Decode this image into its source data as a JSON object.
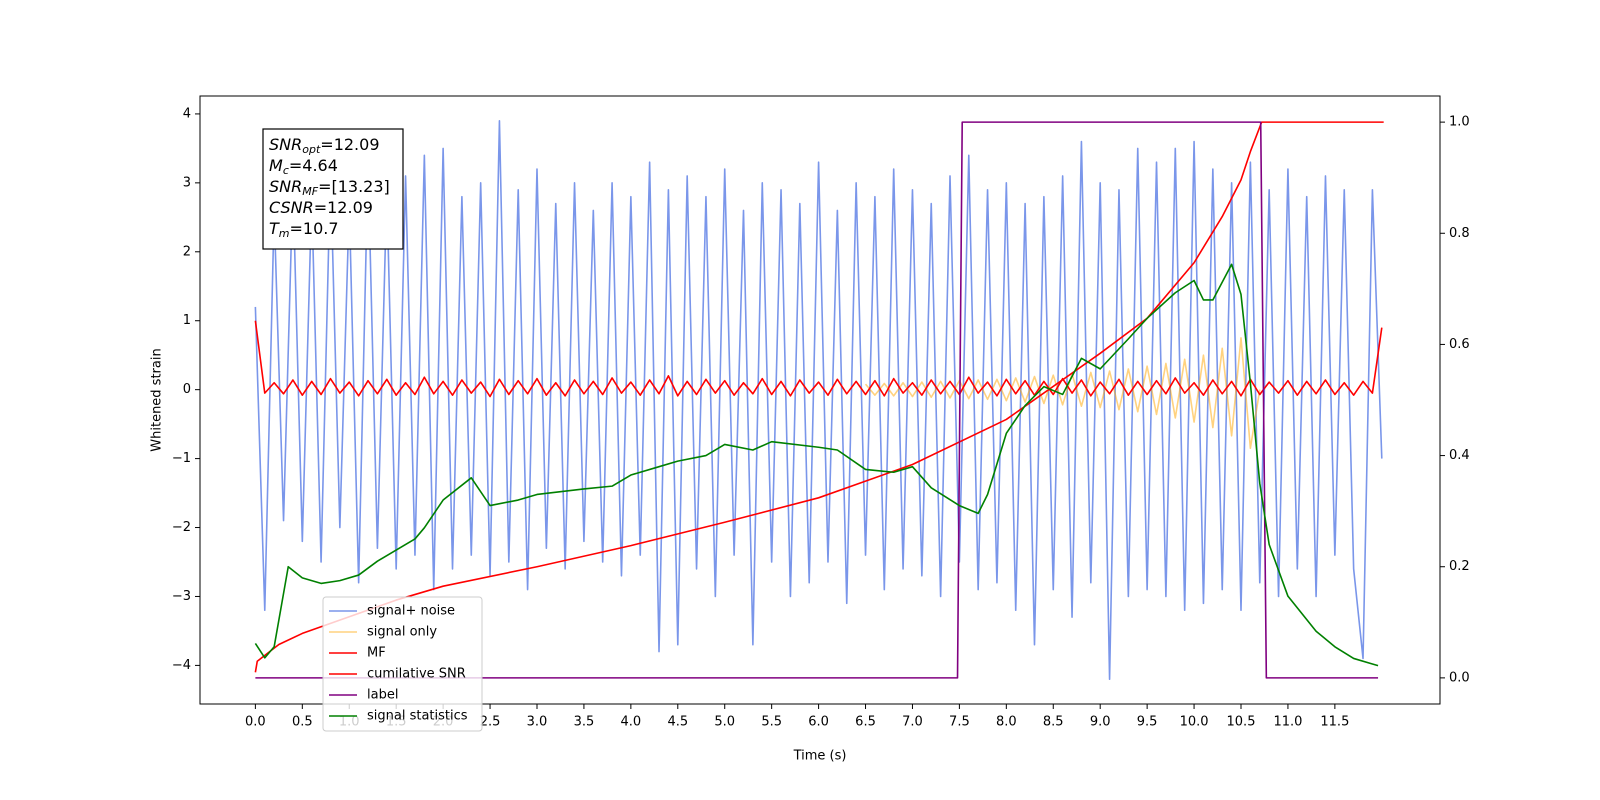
{
  "chart_data": {
    "type": "line",
    "xlabel": "Time (s)",
    "ylabel": "Whitened strain",
    "xlim": [
      -0.59,
      12.62
    ],
    "ylim": [
      -4.56,
      4.26
    ],
    "y2lim": [
      -0.047,
      1.047
    ],
    "xticks": [
      {
        "value": 0,
        "label": "0.0"
      },
      0.5,
      {
        "value": 1,
        "label": "1.0"
      },
      1.5,
      {
        "value": 2,
        "label": "2.0"
      },
      2.5,
      {
        "value": 3,
        "label": "3.0"
      },
      3.5,
      {
        "value": 4,
        "label": "4.0"
      },
      4.5,
      {
        "value": 5,
        "label": "5.0"
      },
      5.5,
      {
        "value": 6,
        "label": "6.0"
      },
      6.5,
      {
        "value": 7,
        "label": "7.0"
      },
      7.5,
      {
        "value": 8,
        "label": "8.0"
      },
      8.5,
      {
        "value": 9,
        "label": "9.0"
      },
      9.5,
      {
        "value": 10,
        "label": "10.0"
      },
      10.5,
      {
        "value": 11,
        "label": "11.0"
      },
      11.5
    ],
    "yticks": [
      {
        "value": -4,
        "label": "−4"
      },
      {
        "value": -3,
        "label": "−3"
      },
      {
        "value": -2,
        "label": "−2"
      },
      {
        "value": -1,
        "label": "−1"
      },
      0,
      1,
      2,
      3,
      4
    ],
    "y2ticks": [
      {
        "value": 0,
        "label": "0.0"
      },
      0.2,
      0.4,
      0.6,
      0.8,
      {
        "value": 1,
        "label": "1.0"
      }
    ],
    "legend": "lower left",
    "annotations": [
      {
        "text": "SNR",
        "sub": "opt",
        "rest": "=12.09"
      },
      {
        "text": "M",
        "sub": "c",
        "rest": "=4.64"
      },
      {
        "text": "SNR",
        "sub": "MF",
        "rest": "=[13.23]"
      },
      {
        "text": "CSNR",
        "rest": "=12.09"
      },
      {
        "text": "T",
        "sub": "m",
        "rest": "=10.7"
      }
    ],
    "x": [
      0,
      0.1,
      0.2,
      0.3,
      0.4,
      0.5,
      0.6,
      0.7,
      0.8,
      0.9,
      1,
      1.1,
      1.2,
      1.3,
      1.4,
      1.5,
      1.6,
      1.7,
      1.8,
      1.9,
      2,
      2.1,
      2.2,
      2.3,
      2.4,
      2.5,
      2.6,
      2.7,
      2.8,
      2.9,
      3,
      3.1,
      3.2,
      3.3,
      3.4,
      3.5,
      3.6,
      3.7,
      3.8,
      3.9,
      4,
      4.1,
      4.2,
      4.3,
      4.4,
      4.5,
      4.6,
      4.7,
      4.8,
      4.9,
      5,
      5.1,
      5.2,
      5.3,
      5.4,
      5.5,
      5.6,
      5.7,
      5.8,
      5.9,
      6,
      6.1,
      6.2,
      6.3,
      6.4,
      6.5,
      6.6,
      6.7,
      6.8,
      6.9,
      7,
      7.1,
      7.2,
      7.3,
      7.4,
      7.5,
      7.6,
      7.7,
      7.8,
      7.9,
      8,
      8.1,
      8.2,
      8.3,
      8.4,
      8.5,
      8.6,
      8.7,
      8.8,
      8.9,
      9,
      9.1,
      9.2,
      9.3,
      9.4,
      9.5,
      9.6,
      9.7,
      9.8,
      9.9,
      10,
      10.1,
      10.2,
      10.3,
      10.4,
      10.5,
      10.6,
      10.7,
      10.8,
      10.9,
      11,
      11.1,
      11.2,
      11.3,
      11.4,
      11.5,
      11.6,
      11.7,
      11.8,
      11.9,
      12
    ],
    "series": [
      {
        "name": "signal+ noise",
        "color": "#4169e1",
        "opacity": 0.7,
        "values": [
          1.2,
          -3.2,
          2.6,
          -1.9,
          3.0,
          -2.2,
          2.8,
          -2.5,
          3.2,
          -2.0,
          2.7,
          -2.8,
          3.3,
          -2.3,
          2.9,
          -2.6,
          3.1,
          -2.4,
          3.4,
          -2.9,
          3.5,
          -2.6,
          2.8,
          -2.4,
          3.0,
          -2.7,
          3.9,
          -2.5,
          2.9,
          -2.9,
          3.2,
          -2.3,
          2.7,
          -2.6,
          3.0,
          -2.2,
          2.6,
          -2.5,
          3.0,
          -2.7,
          2.8,
          -2.4,
          3.3,
          -3.8,
          2.9,
          -3.7,
          3.1,
          -2.6,
          2.8,
          -3.0,
          3.2,
          -2.4,
          2.6,
          -3.7,
          3.0,
          -2.5,
          2.9,
          -3.0,
          2.7,
          -2.8,
          3.3,
          -2.5,
          2.6,
          -3.1,
          3.0,
          -2.4,
          2.8,
          -2.9,
          3.2,
          -2.6,
          2.9,
          -2.7,
          2.7,
          -3.0,
          3.1,
          -2.5,
          3.4,
          -2.9,
          2.9,
          -2.8,
          3.0,
          -3.2,
          2.7,
          -3.7,
          2.8,
          -2.9,
          3.1,
          -3.3,
          3.6,
          -2.8,
          3.0,
          -4.2,
          2.9,
          -3.0,
          3.5,
          -2.9,
          3.3,
          -3.0,
          3.5,
          -3.2,
          3.6,
          -3.1,
          3.2,
          -2.9,
          3.0,
          -3.2,
          3.3,
          -2.8,
          2.9,
          -3.0,
          3.2,
          -2.6,
          2.8,
          -3.0,
          3.1,
          -2.4,
          2.9,
          -2.6,
          -3.9,
          2.9,
          -1.0
        ]
      },
      {
        "name": "signal only",
        "color": "orange",
        "opacity": 0.5,
        "x": [
          6.5,
          6.6,
          6.7,
          6.8,
          6.9,
          7,
          7.1,
          7.2,
          7.3,
          7.4,
          7.5,
          7.6,
          7.7,
          7.8,
          7.9,
          8,
          8.1,
          8.2,
          8.3,
          8.4,
          8.5,
          8.6,
          8.7,
          8.8,
          8.9,
          9,
          9.1,
          9.2,
          9.3,
          9.4,
          9.5,
          9.6,
          9.7,
          9.8,
          9.9,
          10,
          10.1,
          10.2,
          10.3,
          10.4,
          10.5,
          10.6,
          10.7
        ],
        "values": [
          0.08,
          -0.08,
          0.09,
          -0.09,
          0.1,
          -0.1,
          0.11,
          -0.11,
          0.12,
          -0.12,
          0.13,
          -0.13,
          0.14,
          -0.14,
          0.15,
          -0.16,
          0.17,
          -0.18,
          0.19,
          -0.2,
          0.21,
          -0.22,
          0.23,
          -0.24,
          0.25,
          -0.26,
          0.27,
          -0.29,
          0.3,
          -0.32,
          0.34,
          -0.36,
          0.38,
          -0.41,
          0.44,
          -0.47,
          0.5,
          -0.55,
          0.6,
          -0.67,
          0.75,
          -0.85,
          0.0
        ]
      },
      {
        "name": "MF",
        "color": "red",
        "opacity": 1,
        "values": [
          1.0,
          -0.05,
          0.1,
          -0.06,
          0.14,
          -0.08,
          0.12,
          -0.07,
          0.16,
          -0.05,
          0.11,
          -0.09,
          0.13,
          -0.06,
          0.15,
          -0.08,
          0.1,
          -0.07,
          0.18,
          -0.06,
          0.12,
          -0.08,
          0.14,
          -0.05,
          0.11,
          -0.1,
          0.15,
          -0.07,
          0.13,
          -0.06,
          0.16,
          -0.08,
          0.1,
          -0.09,
          0.14,
          -0.06,
          0.12,
          -0.07,
          0.17,
          -0.05,
          0.11,
          -0.08,
          0.14,
          -0.06,
          0.2,
          -0.09,
          0.12,
          -0.07,
          0.15,
          -0.05,
          0.13,
          -0.08,
          0.1,
          -0.06,
          0.16,
          -0.07,
          0.12,
          -0.09,
          0.14,
          -0.05,
          0.11,
          -0.08,
          0.15,
          -0.06,
          0.12,
          -0.07,
          0.13,
          -0.09,
          0.16,
          -0.05,
          0.1,
          -0.08,
          0.14,
          -0.06,
          0.12,
          -0.07,
          0.18,
          -0.05,
          0.11,
          -0.09,
          0.15,
          -0.06,
          0.13,
          -0.08,
          0.12,
          -0.07,
          0.16,
          -0.05,
          0.14,
          -0.09,
          0.11,
          -0.06,
          0.15,
          -0.08,
          0.12,
          -0.07,
          0.13,
          -0.06,
          0.17,
          -0.05,
          0.1,
          -0.08,
          0.14,
          -0.06,
          0.12,
          -0.09,
          0.15,
          -0.07,
          0.11,
          -0.05,
          0.13,
          -0.08,
          0.12,
          -0.06,
          0.14,
          -0.07,
          0.1,
          -0.08,
          0.12,
          -0.05,
          0.9
        ]
      },
      {
        "name": "cumilative SNR",
        "color": "red",
        "opacity": 1,
        "axis": "y2",
        "x": [
          0,
          0.02,
          0.25,
          0.5,
          1,
          1.5,
          2,
          3,
          4,
          5,
          6,
          7,
          8,
          9,
          9.5,
          10,
          10.3,
          10.5,
          10.6,
          10.72,
          11,
          11.5,
          12.02
        ],
        "values": [
          0.01,
          0.03,
          0.06,
          0.08,
          0.11,
          0.14,
          0.165,
          0.2,
          0.238,
          0.28,
          0.324,
          0.384,
          0.465,
          0.584,
          0.647,
          0.747,
          0.83,
          0.896,
          0.947,
          1.0,
          1.0,
          1.0,
          1.0
        ]
      },
      {
        "name": "label",
        "color": "purple",
        "opacity": 1,
        "axis": "y2",
        "x": [
          0,
          7.48,
          7.53,
          10.71,
          10.77,
          11.96
        ],
        "values": [
          0,
          0,
          1,
          1,
          0,
          0
        ]
      },
      {
        "name": "signal statistics",
        "color": "green",
        "opacity": 1,
        "axis": "y2",
        "x": [
          0,
          0.1,
          0.2,
          0.35,
          0.5,
          0.7,
          0.9,
          1.1,
          1.3,
          1.5,
          1.7,
          1.8,
          2.0,
          2.3,
          2.5,
          2.8,
          3.0,
          3.5,
          3.8,
          4.0,
          4.3,
          4.5,
          4.8,
          5.0,
          5.3,
          5.5,
          6.0,
          6.2,
          6.5,
          6.8,
          7.0,
          7.2,
          7.5,
          7.7,
          7.8,
          8.0,
          8.2,
          8.4,
          8.6,
          8.8,
          9.0,
          9.3,
          9.5,
          9.8,
          10.0,
          10.1,
          10.2,
          10.4,
          10.5,
          10.6,
          10.7,
          10.8,
          11.0,
          11.3,
          11.5,
          11.7,
          11.9,
          11.96
        ],
        "values": [
          0.062,
          0.036,
          0.056,
          0.2,
          0.18,
          0.17,
          0.175,
          0.185,
          0.21,
          0.23,
          0.25,
          0.27,
          0.32,
          0.36,
          0.31,
          0.32,
          0.33,
          0.34,
          0.345,
          0.365,
          0.38,
          0.39,
          0.4,
          0.42,
          0.41,
          0.425,
          0.415,
          0.41,
          0.375,
          0.37,
          0.38,
          0.342,
          0.31,
          0.296,
          0.33,
          0.44,
          0.49,
          0.524,
          0.51,
          0.575,
          0.556,
          0.61,
          0.647,
          0.693,
          0.715,
          0.68,
          0.68,
          0.744,
          0.69,
          0.53,
          0.35,
          0.24,
          0.147,
          0.084,
          0.056,
          0.035,
          0.025,
          0.022
        ]
      }
    ]
  }
}
